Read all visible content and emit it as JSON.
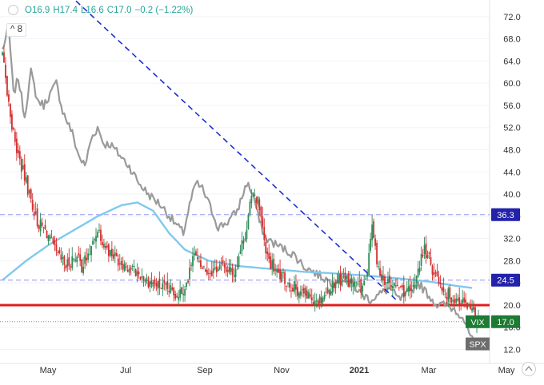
{
  "legend": {
    "open": "O16.9",
    "high": "H17.4",
    "low": "L16.6",
    "close": "C17.0",
    "change": "−0.2 (−1.22%)"
  },
  "collapse_label": "8",
  "chart_data": {
    "type": "line",
    "title": "",
    "xlabel": "",
    "ylabel": "",
    "ylim": [
      10.2,
      75
    ],
    "x_ticks": [
      "May",
      "Jul",
      "Sep",
      "Nov",
      "2021",
      "Mar",
      "May"
    ],
    "y_ticks": [
      12.0,
      16.0,
      20.0,
      24.0,
      28.0,
      32.0,
      36.0,
      40.0,
      44.0,
      48.0,
      52.0,
      56.0,
      60.0,
      64.0,
      68.0,
      72.0
    ],
    "y_tick_labels": [
      "12.0",
      "16.0",
      "20.0",
      "24.0",
      "28.0",
      "32.0",
      "36.0",
      "40.0",
      "44.0",
      "48.0",
      "52.0",
      "56.0",
      "60.0",
      "64.0",
      "68.0",
      "72.0"
    ],
    "months_index": {
      "start": "Mar 2020",
      "end": "Apr 2021"
    },
    "series": [
      {
        "name": "VIX",
        "style": "candles",
        "anchors": [
          [
            0,
            65
          ],
          [
            3,
            58
          ],
          [
            8,
            49
          ],
          [
            16,
            41
          ],
          [
            22,
            35
          ],
          [
            28,
            33
          ],
          [
            34,
            29
          ],
          [
            40,
            27
          ],
          [
            46,
            29
          ],
          [
            50,
            27
          ],
          [
            56,
            30
          ],
          [
            60,
            34
          ],
          [
            66,
            30
          ],
          [
            74,
            28
          ],
          [
            84,
            26
          ],
          [
            94,
            24
          ],
          [
            102,
            23
          ],
          [
            110,
            22
          ],
          [
            117,
            24
          ],
          [
            120,
            30
          ],
          [
            124,
            27
          ],
          [
            130,
            26
          ],
          [
            138,
            27
          ],
          [
            146,
            26
          ],
          [
            154,
            34
          ],
          [
            158,
            41
          ],
          [
            162,
            38
          ],
          [
            166,
            29
          ],
          [
            172,
            26
          ],
          [
            180,
            24
          ],
          [
            190,
            22
          ],
          [
            200,
            21
          ],
          [
            206,
            23
          ],
          [
            212,
            25
          ],
          [
            220,
            24
          ],
          [
            226,
            23
          ],
          [
            230,
            25
          ],
          [
            233,
            35
          ],
          [
            236,
            27
          ],
          [
            242,
            24
          ],
          [
            250,
            23
          ],
          [
            258,
            22
          ],
          [
            262,
            27
          ],
          [
            266,
            30
          ],
          [
            272,
            26
          ],
          [
            280,
            22
          ],
          [
            286,
            21
          ],
          [
            292,
            20
          ],
          [
            296,
            18.5
          ],
          [
            300,
            17
          ]
        ],
        "labels_on_chart": [
          "VIX",
          "17.0"
        ]
      },
      {
        "name": "SPX",
        "style": "line",
        "anchors": [
          [
            0,
            66
          ],
          [
            4,
            70
          ],
          [
            7,
            58
          ],
          [
            10,
            61
          ],
          [
            14,
            54
          ],
          [
            18,
            62
          ],
          [
            22,
            57
          ],
          [
            26,
            56
          ],
          [
            30,
            58
          ],
          [
            34,
            60
          ],
          [
            38,
            55
          ],
          [
            44,
            51
          ],
          [
            48,
            47
          ],
          [
            52,
            45
          ],
          [
            56,
            50
          ],
          [
            60,
            52
          ],
          [
            64,
            49
          ],
          [
            68,
            49
          ],
          [
            74,
            47
          ],
          [
            80,
            45
          ],
          [
            86,
            42
          ],
          [
            92,
            40
          ],
          [
            100,
            38
          ],
          [
            108,
            35
          ],
          [
            114,
            33
          ],
          [
            118,
            38
          ],
          [
            122,
            42
          ],
          [
            126,
            41
          ],
          [
            132,
            37
          ],
          [
            136,
            34
          ],
          [
            142,
            35
          ],
          [
            148,
            37
          ],
          [
            154,
            42
          ],
          [
            158,
            40
          ],
          [
            162,
            35
          ],
          [
            166,
            32
          ],
          [
            172,
            31
          ],
          [
            178,
            30
          ],
          [
            184,
            29
          ],
          [
            190,
            27
          ],
          [
            196,
            26
          ],
          [
            202,
            25
          ],
          [
            208,
            24
          ],
          [
            214,
            25
          ],
          [
            220,
            24
          ],
          [
            226,
            22
          ],
          [
            232,
            21
          ],
          [
            238,
            22
          ],
          [
            244,
            23
          ],
          [
            250,
            21
          ],
          [
            256,
            22
          ],
          [
            262,
            24
          ],
          [
            268,
            22
          ],
          [
            274,
            20
          ],
          [
            280,
            20
          ],
          [
            286,
            19
          ],
          [
            290,
            18
          ],
          [
            294,
            15
          ],
          [
            298,
            12.5
          ]
        ],
        "labels_on_chart": [
          "SPX"
        ]
      },
      {
        "name": "",
        "style": "moving-average",
        "color": "#81c8ed",
        "anchors": [
          [
            0,
            24.5
          ],
          [
            15,
            28
          ],
          [
            30,
            31
          ],
          [
            45,
            33.5
          ],
          [
            60,
            36
          ],
          [
            75,
            38
          ],
          [
            85,
            38.5
          ],
          [
            95,
            37
          ],
          [
            105,
            33
          ],
          [
            115,
            30
          ],
          [
            130,
            28
          ],
          [
            150,
            27
          ],
          [
            170,
            26.5
          ],
          [
            190,
            26
          ],
          [
            210,
            25.7
          ],
          [
            230,
            25.3
          ],
          [
            250,
            24.8
          ],
          [
            270,
            24.2
          ],
          [
            285,
            23.5
          ],
          [
            296,
            23.1
          ]
        ]
      }
    ],
    "horizontal_levels": [
      {
        "value": 36.3,
        "style": "dashed",
        "color": "#9c9cf0",
        "label": "36.3"
      },
      {
        "value": 24.5,
        "style": "dashed",
        "color": "#9c9cf0",
        "label": "24.5"
      },
      {
        "value": 20.0,
        "style": "solid-thick",
        "color": "#e01e1e"
      },
      {
        "value": 17.0,
        "style": "dotted",
        "color": "#888888"
      }
    ],
    "trendline": {
      "from": [
        42,
        76
      ],
      "to": [
        248,
        21
      ],
      "style": "dashed",
      "color": "#1f2fd0"
    },
    "price_tags": [
      {
        "value": 36.3,
        "text": "36.3",
        "bg": "#2222aa"
      },
      {
        "value": 24.5,
        "text": "24.5",
        "bg": "#2222aa"
      },
      {
        "value": 17.0,
        "text": "17.0",
        "bg": "#1e7b34",
        "prefix": "VIX"
      },
      {
        "value": 13.0,
        "text": "",
        "bg": "#6d6d6d",
        "prefix": "SPX"
      }
    ],
    "colors": {
      "up": "#26a69a",
      "down": "#ef5350",
      "candle_up_body": "#2e8b57",
      "candle_down_body": "#d32f2f",
      "spx_line": "#9a9a9a",
      "grid": "#f0f3fa",
      "axis_text": "#333333"
    }
  },
  "icons": {
    "collapse": "chevron-up-icon",
    "status": "circle-dot-icon",
    "settings": "settings-icon"
  }
}
